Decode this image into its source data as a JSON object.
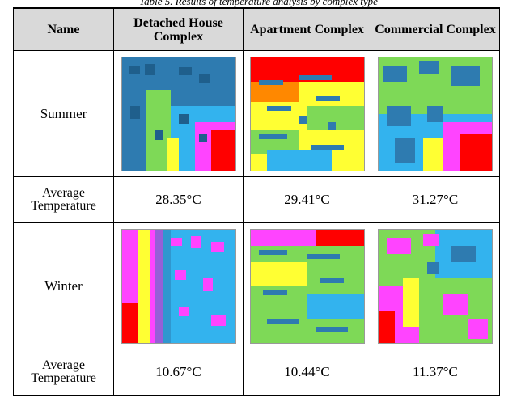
{
  "caption": "Table 5. Results of temperature analysis by complex type",
  "header": {
    "name": "Name",
    "col1": "Detached House Complex",
    "col2": "Apartment Complex",
    "col3": "Commercial Complex"
  },
  "rows": {
    "summer_label": "Summer",
    "summer_avg_label": "Average Temperature",
    "summer_values": [
      "28.35°C",
      "29.41°C",
      "31.27°C"
    ],
    "winter_label": "Winter",
    "winter_avg_label": "Average Temperature",
    "winter_values": [
      "10.67°C",
      "10.44°C",
      "11.37°C"
    ]
  },
  "colors": {
    "building": "#2e7bb0",
    "hot": "#ff0000",
    "warm": "#ffff33",
    "mild": "#7ed957",
    "cool": "#33b3ee",
    "cold": "#ff44ff"
  }
}
